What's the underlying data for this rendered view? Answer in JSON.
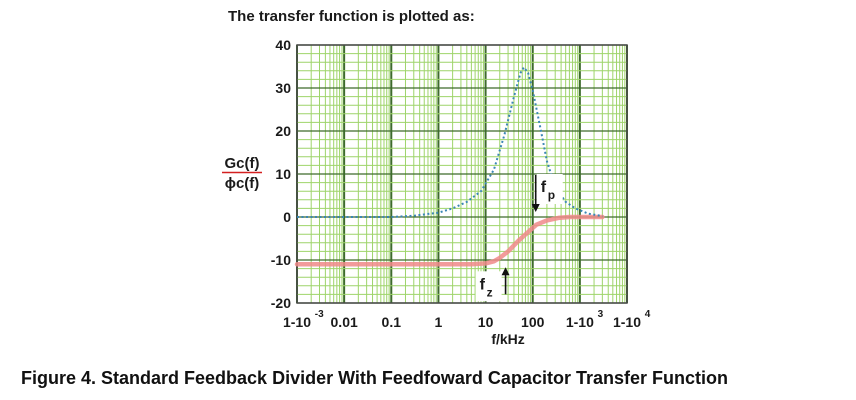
{
  "heading": "The transfer function is plotted as:",
  "caption": "Figure 4. Standard Feedback Divider With Feedfoward Capacitor Transfer Function",
  "colors": {
    "grid_minor": "#9ed46a",
    "grid_major": "#3d6b2b",
    "plot_border": "#4a4a4a",
    "gain_curve": "#3b86b5",
    "phase_curve": "#f08a8a",
    "ylabel_divider": "#d42020"
  },
  "chart_data": {
    "type": "line",
    "title": "",
    "xlabel": "f/kHz",
    "ylabel_top": "Gc(f)",
    "ylabel_bottom": "ϕc(f)",
    "x_scale": "log",
    "xlim": [
      0.001,
      10000
    ],
    "ylim": [
      -20,
      40
    ],
    "grid": true,
    "x_ticks": [
      {
        "value": 0.001,
        "label": "1-10",
        "exp": "-3"
      },
      {
        "value": 0.01,
        "label": "0.01",
        "exp": ""
      },
      {
        "value": 0.1,
        "label": "0.1",
        "exp": ""
      },
      {
        "value": 1,
        "label": "1",
        "exp": ""
      },
      {
        "value": 10,
        "label": "10",
        "exp": ""
      },
      {
        "value": 100,
        "label": "100",
        "exp": ""
      },
      {
        "value": 1000,
        "label": "1-10",
        "exp": "3"
      },
      {
        "value": 10000,
        "label": "1-10",
        "exp": "4"
      }
    ],
    "y_ticks": [
      {
        "value": 40,
        "label": "40"
      },
      {
        "value": 30,
        "label": "30"
      },
      {
        "value": 20,
        "label": "20"
      },
      {
        "value": 10,
        "label": "10"
      },
      {
        "value": 0,
        "label": "0"
      },
      {
        "value": -10,
        "label": "-10"
      },
      {
        "value": -20,
        "label": "-20"
      }
    ],
    "series": [
      {
        "style": "dotted",
        "x": [
          0.001,
          0.01,
          0.1,
          0.3,
          1,
          2,
          4,
          8,
          15,
          25,
          40,
          55,
          65,
          80,
          100,
          150,
          200,
          300,
          500,
          800,
          1500,
          3000
        ],
        "y": [
          0,
          0,
          0,
          0.3,
          1,
          2,
          3.5,
          6,
          11,
          19,
          28,
          33.5,
          34.8,
          33.5,
          29.5,
          20,
          13,
          7,
          3.5,
          2,
          0.8,
          0.2
        ]
      },
      {
        "style": "solid",
        "x": [
          0.001,
          0.1,
          1,
          5,
          10,
          15,
          20,
          30,
          50,
          80,
          120,
          200,
          350,
          600,
          1000,
          3000
        ],
        "y": [
          -11,
          -11,
          -11,
          -11,
          -10.8,
          -10.3,
          -9.5,
          -8,
          -5.5,
          -3.5,
          -1.8,
          -0.8,
          -0.2,
          0,
          0,
          0
        ]
      }
    ],
    "annotations": [
      {
        "main": "f",
        "sub": "p",
        "x": 100,
        "y": 0,
        "arrow": "down"
      },
      {
        "main": "f",
        "sub": "z",
        "x": 10,
        "y": -11,
        "arrow": "up"
      }
    ]
  }
}
